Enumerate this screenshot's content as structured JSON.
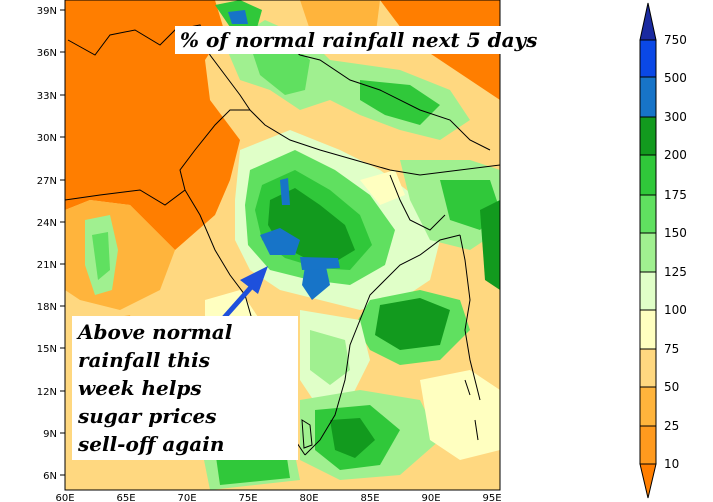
{
  "map": {
    "title": "% of normal rainfall next 5 days",
    "annotation_lines": [
      "Above normal",
      "rainfall this",
      "week helps",
      "sugar prices",
      "sell-off again"
    ],
    "lat_labels": [
      "39N",
      "36N",
      "33N",
      "30N",
      "27N",
      "24N",
      "21N",
      "18N",
      "15N",
      "12N",
      "9N",
      "6N"
    ],
    "lon_labels": [
      "60E",
      "65E",
      "70E",
      "75E",
      "80E",
      "85E",
      "90E",
      "95E"
    ]
  },
  "legend": {
    "labels": [
      "750",
      "500",
      "300",
      "200",
      "175",
      "150",
      "125",
      "100",
      "75",
      "50",
      "25",
      "10"
    ],
    "colors": {
      "below_10": "#ff7e00",
      "10_25": "#ff9a1e",
      "25_50": "#ffb43c",
      "50_75": "#ffd880",
      "75_100": "#ffffc0",
      "100_125": "#e0ffc8",
      "125_150": "#a0f090",
      "150_175": "#60e060",
      "175_200": "#30c83a",
      "200_300": "#129a1e",
      "300_500": "#1774c8",
      "500_750": "#0a48e6",
      "above_750": "#1a2aa0"
    }
  },
  "arrow_color": "#1e50dc"
}
